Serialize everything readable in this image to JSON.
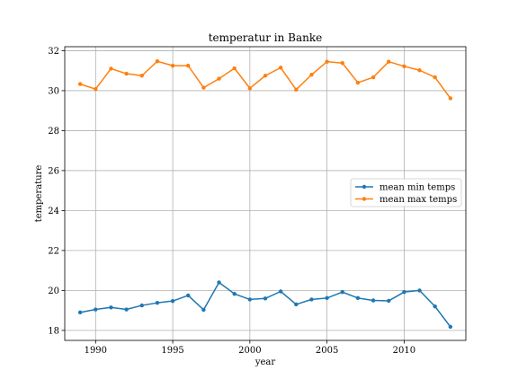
{
  "chart_data": {
    "type": "line",
    "title": "temperatur in Banke",
    "xlabel": "year",
    "ylabel": "temperature",
    "xlim": [
      1988,
      2014
    ],
    "ylim": [
      17.5,
      32.2
    ],
    "xticks": [
      1990,
      1995,
      2000,
      2005,
      2010
    ],
    "yticks": [
      18,
      20,
      22,
      24,
      26,
      28,
      30,
      32
    ],
    "grid": true,
    "legend_position": "center-right",
    "x": [
      1989,
      1990,
      1991,
      1992,
      1993,
      1994,
      1995,
      1996,
      1997,
      1998,
      1999,
      2000,
      2001,
      2002,
      2003,
      2004,
      2005,
      2006,
      2007,
      2008,
      2009,
      2010,
      2011,
      2012,
      2013
    ],
    "series": [
      {
        "name": "mean min temps",
        "color": "#1f77b4",
        "values": [
          18.9,
          19.05,
          19.15,
          19.05,
          19.25,
          19.38,
          19.47,
          19.75,
          19.03,
          20.4,
          19.83,
          19.55,
          19.6,
          19.95,
          19.3,
          19.55,
          19.62,
          19.92,
          19.62,
          19.5,
          19.48,
          19.92,
          20.0,
          19.2,
          18.18
        ]
      },
      {
        "name": "mean max temps",
        "color": "#ff7f0e",
        "values": [
          30.33,
          30.08,
          31.1,
          30.85,
          30.75,
          31.47,
          31.25,
          31.25,
          30.15,
          30.6,
          31.12,
          30.12,
          30.75,
          31.15,
          30.05,
          30.8,
          31.45,
          31.38,
          30.4,
          30.67,
          31.45,
          31.22,
          31.02,
          30.67,
          29.62
        ]
      }
    ]
  }
}
